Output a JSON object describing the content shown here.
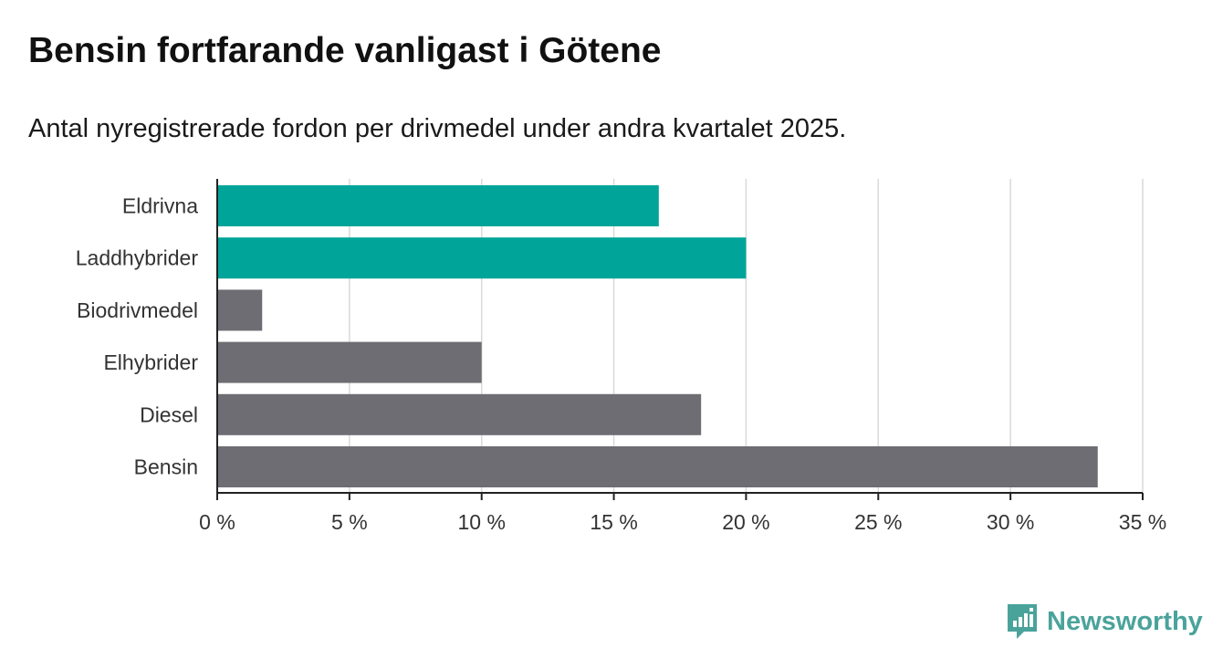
{
  "title": "Bensin fortfarande vanligast i Götene",
  "subtitle": "Antal nyregistrerade fordon per drivmedel under andra kvartalet 2025.",
  "brand": {
    "name": "Newsworthy",
    "icon": "newsworthy-logo-icon",
    "color": "#4aa39b"
  },
  "chart_data": {
    "type": "bar",
    "orientation": "horizontal",
    "title": "Bensin fortfarande vanligast i Götene",
    "subtitle": "Antal nyregistrerade fordon per drivmedel under andra kvartalet 2025.",
    "categories": [
      "Eldrivna",
      "Laddhybrider",
      "Biodrivmedel",
      "Elhybrider",
      "Diesel",
      "Bensin"
    ],
    "values": [
      16.7,
      20.0,
      1.7,
      10.0,
      18.3,
      33.3
    ],
    "colors": [
      "#00a499",
      "#00a499",
      "#6e6d73",
      "#6e6d73",
      "#6e6d73",
      "#6e6d73"
    ],
    "xlim": [
      0,
      35
    ],
    "xticks": [
      0,
      5,
      10,
      15,
      20,
      25,
      30,
      35
    ],
    "xtick_labels": [
      "0 %",
      "5 %",
      "10 %",
      "15 %",
      "20 %",
      "25 %",
      "30 %",
      "35 %"
    ],
    "xlabel": "",
    "ylabel": "",
    "grid": "vertical",
    "gridline_color": "#d9d9d9",
    "axis_color": "#222222"
  }
}
